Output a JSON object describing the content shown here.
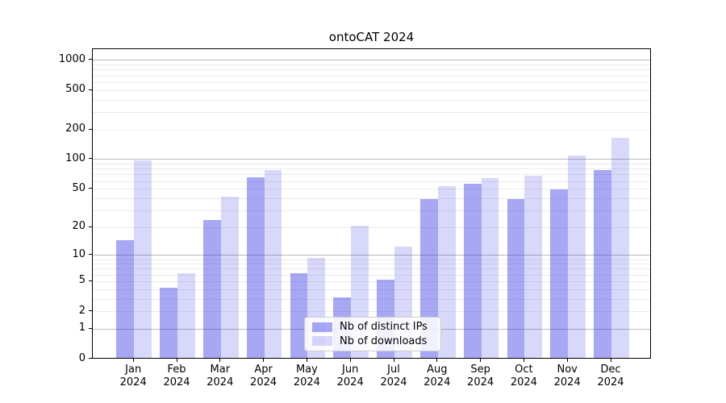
{
  "chart_data": {
    "type": "bar",
    "title": "ontoCAT 2024",
    "categories": [
      "Jan",
      "Feb",
      "Mar",
      "Apr",
      "May",
      "Jun",
      "Jul",
      "Aug",
      "Sep",
      "Oct",
      "Nov",
      "Dec"
    ],
    "category_year": "2024",
    "series": [
      {
        "name": "Nb of distinct IPs",
        "color": "rgba(60,60,230,0.45)",
        "values": [
          14,
          4,
          23,
          63,
          6,
          3,
          5,
          38,
          55,
          38,
          48,
          75
        ]
      },
      {
        "name": "Nb of downloads",
        "color": "rgba(60,60,230,0.20)",
        "values": [
          95,
          6,
          40,
          76,
          9,
          20,
          12,
          52,
          62,
          66,
          106,
          160
        ]
      }
    ],
    "xlabel": "",
    "ylabel": "",
    "yscale": "log1p",
    "ylim": [
      0,
      1280
    ],
    "ytick_labels": [
      0,
      1,
      2,
      5,
      10,
      20,
      50,
      100,
      200,
      500,
      1000
    ],
    "grid": true,
    "legend_position": "bottom-center"
  }
}
